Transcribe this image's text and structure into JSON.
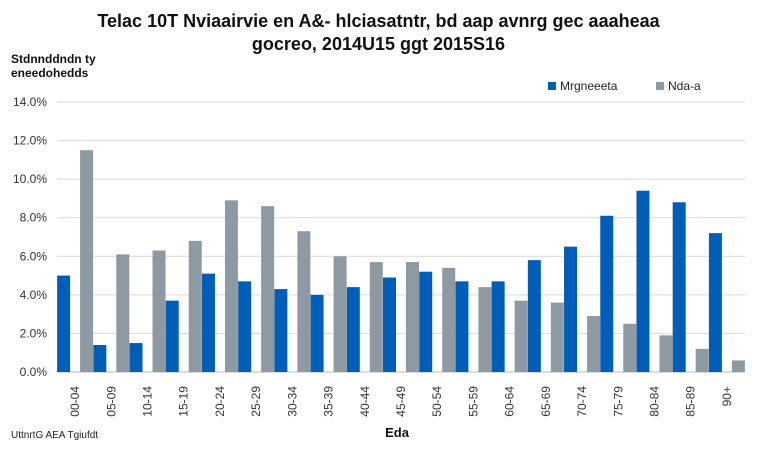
{
  "chart_data": {
    "type": "bar",
    "title_lines": [
      "Telac 10T Nviaairvie en A&- hlciasatntr, bd aap avnrg gec aaaheaa",
      "gocreo, 2014U15 ggt 2015S16"
    ],
    "ylabel_lines": [
      "Stdnnddndn ty",
      "eneedohedds"
    ],
    "xlabel": "Eda",
    "source": "UttnrtG AEA Tgiufdt",
    "categories": [
      "00-04",
      "05-09",
      "10-14",
      "15-19",
      "20-24",
      "25-29",
      "30-34",
      "35-39",
      "40-44",
      "45-49",
      "50-54",
      "55-59",
      "60-64",
      "65-69",
      "70-74",
      "75-79",
      "80-84",
      "85-89",
      "90+"
    ],
    "series": [
      {
        "name": "Mrgneeeta",
        "color": "#005eb8",
        "values": [
          5.0,
          1.4,
          1.5,
          3.7,
          5.1,
          4.7,
          4.3,
          4.0,
          4.4,
          4.9,
          5.2,
          4.7,
          4.7,
          5.8,
          6.5,
          8.1,
          9.4,
          8.8,
          7.2
        ]
      },
      {
        "name": "Nda-a",
        "color": "#8d9aa3",
        "values": [
          11.5,
          6.1,
          6.3,
          6.8,
          8.9,
          8.6,
          7.3,
          6.0,
          5.7,
          5.7,
          5.4,
          4.4,
          3.7,
          3.6,
          2.9,
          2.5,
          1.9,
          1.2,
          0.6
        ]
      }
    ],
    "ylim": [
      0,
      14
    ],
    "yticks": [
      {
        "value": 0,
        "label": "0.0%"
      },
      {
        "value": 2,
        "label": "2.0%"
      },
      {
        "value": 4,
        "label": "4.0%"
      },
      {
        "value": 6,
        "label": "6.0%"
      },
      {
        "value": 8,
        "label": "8.0%"
      },
      {
        "value": 10,
        "label": "10.0%"
      },
      {
        "value": 12,
        "label": "12.0%"
      },
      {
        "value": 14,
        "label": "14.0%"
      }
    ],
    "grid": true,
    "legend_position": "top-right"
  }
}
